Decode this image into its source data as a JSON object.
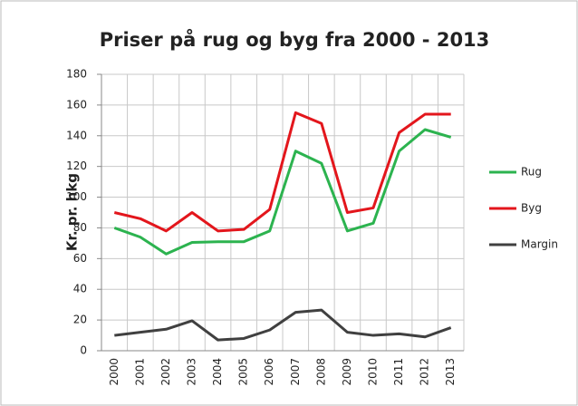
{
  "chart_data": {
    "type": "line",
    "title": "Priser på rug og byg fra 2000 - 2013",
    "ylabel": "Kr. pr. hkg",
    "categories": [
      "2000",
      "2001",
      "2002",
      "2003",
      "2004",
      "2005",
      "2006",
      "2007",
      "2008",
      "2009",
      "2010",
      "2011",
      "2012",
      "2013"
    ],
    "series": [
      {
        "name": "Rug",
        "color": "#2cb34f",
        "values": [
          80,
          74,
          63,
          70.5,
          71,
          71,
          78,
          130,
          122,
          78,
          83,
          130,
          144,
          139
        ]
      },
      {
        "name": "Byg",
        "color": "#e3161c",
        "values": [
          90,
          86,
          78,
          90,
          78,
          79,
          92,
          155,
          148,
          90,
          93,
          142,
          154,
          154
        ]
      },
      {
        "name": "Margin",
        "color": "#404040",
        "values": [
          10,
          12,
          14,
          19.5,
          7,
          8,
          13.5,
          25,
          26.5,
          12,
          10,
          11,
          9,
          15
        ]
      }
    ],
    "ylim": [
      0,
      180
    ],
    "yticks": [
      0,
      20,
      40,
      60,
      80,
      100,
      120,
      140,
      160,
      180
    ],
    "grid": true,
    "legend": "right"
  }
}
